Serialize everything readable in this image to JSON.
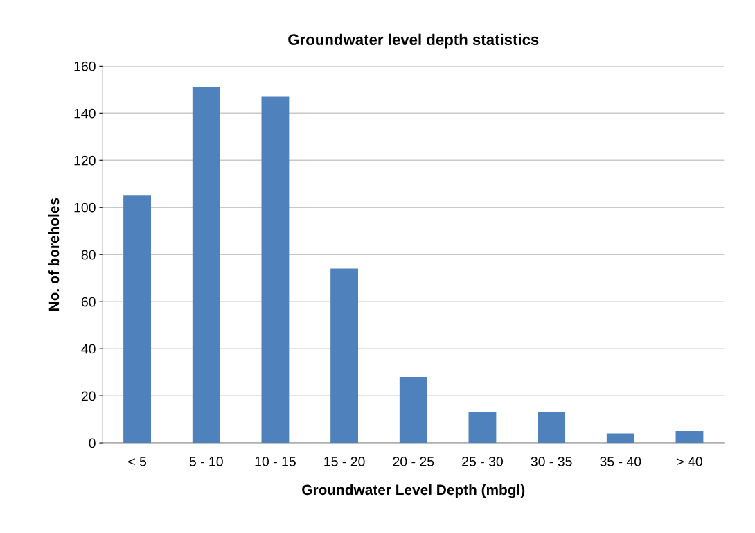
{
  "chart_data": {
    "type": "bar",
    "title": "Groundwater level depth statistics",
    "xlabel": "Groundwater Level Depth (mbgl)",
    "ylabel": "No. of boreholes",
    "categories": [
      "< 5",
      "5 - 10",
      "10 - 15",
      "15 - 20",
      "20 - 25",
      "25 - 30",
      "30 - 35",
      "35 - 40",
      "> 40"
    ],
    "values": [
      105,
      151,
      147,
      74,
      28,
      13,
      13,
      4,
      5
    ],
    "color": "#4f81bd",
    "ylim": [
      0,
      160
    ],
    "yticks": [
      0,
      20,
      40,
      60,
      80,
      100,
      120,
      140,
      160
    ],
    "grid": "y",
    "legend": false
  }
}
